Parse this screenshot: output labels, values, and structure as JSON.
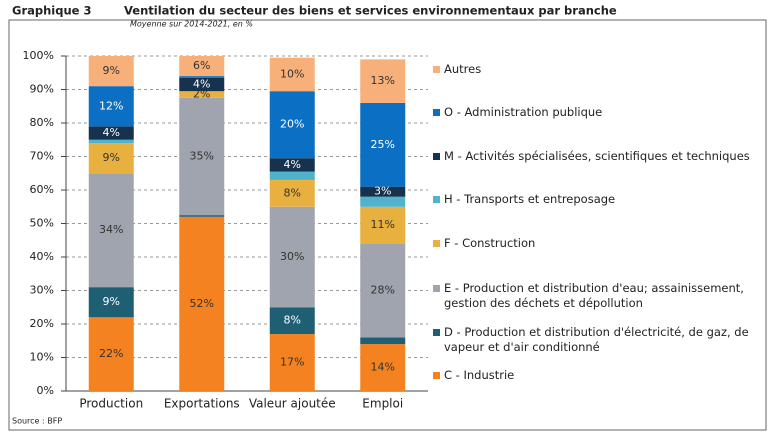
{
  "chart_data": {
    "type": "stacked_bar",
    "label": "Graphique 3",
    "title": "Ventilation du secteur des biens et services environnementaux par branche",
    "subtitle": "Moyenne sur 2014-2021, en %",
    "source": "Source : BFP",
    "categories": [
      "Production",
      "Exportations",
      "Valeur ajoutée",
      "Emploi"
    ],
    "ylim": [
      0,
      100
    ],
    "yticks": [
      {
        "value": 0,
        "label": "0%"
      },
      {
        "value": 10,
        "label": "10%"
      },
      {
        "value": 20,
        "label": "20%"
      },
      {
        "value": 30,
        "label": "30%"
      },
      {
        "value": 40,
        "label": "40%"
      },
      {
        "value": 50,
        "label": "50%"
      },
      {
        "value": 60,
        "label": "60%"
      },
      {
        "value": 70,
        "label": "70%"
      },
      {
        "value": 80,
        "label": "80%"
      },
      {
        "value": 90,
        "label": "90%"
      },
      {
        "value": 100,
        "label": "100%"
      }
    ],
    "grid": true,
    "series": [
      {
        "name": "C - Industrie",
        "color": "#f58220",
        "values": [
          22,
          52,
          17,
          14
        ],
        "value_labels": [
          "22%",
          "52%",
          "17%",
          "14%"
        ]
      },
      {
        "name": "D - Production et distribution d'électricité, de gaz, de vapeur et d'air conditionné",
        "color": "#1f5f74",
        "values": [
          9,
          0.5,
          8,
          2
        ],
        "value_labels": [
          "9%",
          null,
          "8%",
          null
        ]
      },
      {
        "name": "E - Production et distribution d'eau; assainissement, gestion des déchets et dépollution",
        "color": "#a0a4ae",
        "values": [
          34,
          35,
          30,
          28
        ],
        "value_labels": [
          "34%",
          "35%",
          "30%",
          "28%"
        ]
      },
      {
        "name": "F - Construction",
        "color": "#e8b13f",
        "values": [
          9,
          2,
          8,
          11
        ],
        "value_labels": [
          "9%",
          "2%",
          "8%",
          "11%"
        ]
      },
      {
        "name": "H - Transports et entreposage",
        "color": "#4fb3cc",
        "values": [
          1,
          0,
          2.5,
          3
        ],
        "value_labels": [
          null,
          null,
          null,
          null
        ]
      },
      {
        "name": "M - Activités spécialisées, scientifiques et techniques",
        "color": "#16324f",
        "values": [
          4,
          4,
          4,
          3
        ],
        "value_labels": [
          "4%",
          "4%",
          "4%",
          "3%"
        ]
      },
      {
        "name": "O - Administration publique",
        "color": "#0b6fc4",
        "values": [
          12,
          0.5,
          20,
          25
        ],
        "value_labels": [
          "12%",
          null,
          "20%",
          "25%"
        ]
      },
      {
        "name": "Autres",
        "color": "#f8b07a",
        "values": [
          9,
          6,
          10,
          13
        ],
        "value_labels": [
          "9%",
          "6%",
          "10%",
          "13%"
        ]
      }
    ]
  }
}
